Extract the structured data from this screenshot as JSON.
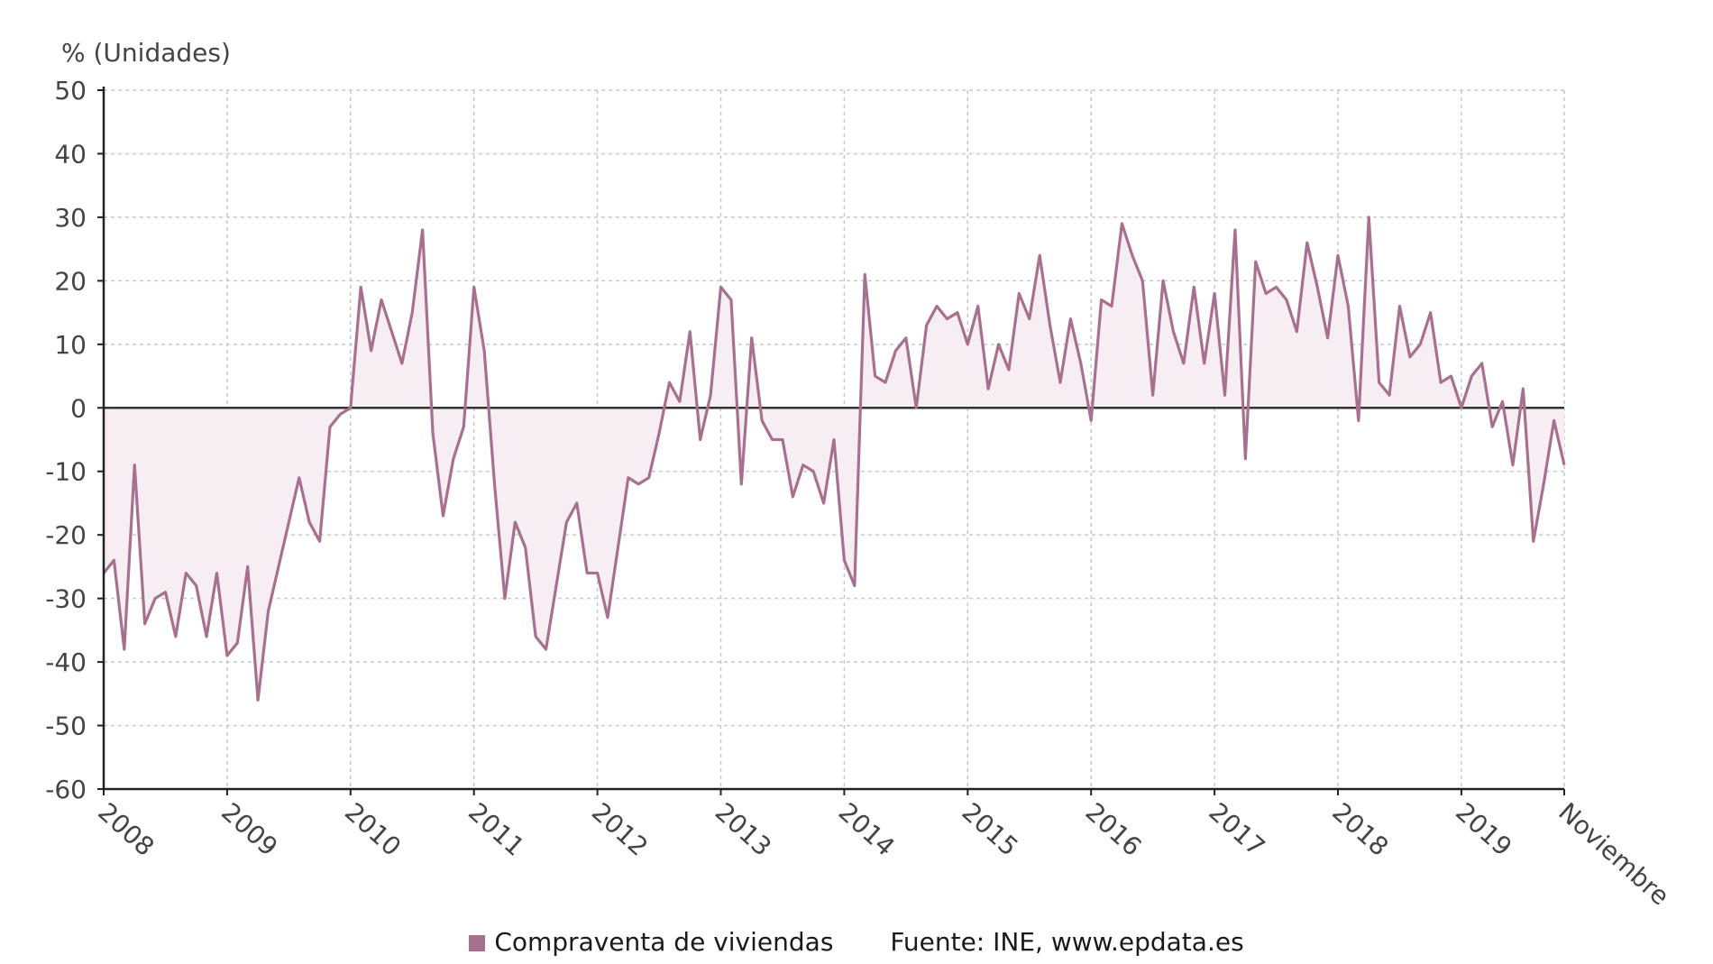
{
  "chart_data": {
    "type": "area",
    "title": "",
    "ylabel": "% (Unidades)",
    "ylim": [
      -60,
      50
    ],
    "yticks": [
      -60,
      -50,
      -40,
      -30,
      -20,
      -10,
      0,
      10,
      20,
      30,
      40,
      50
    ],
    "xlim": [
      "2008-01",
      "2019-11"
    ],
    "xticks": [
      {
        "label": "2008",
        "date": "2008-01"
      },
      {
        "label": "2009",
        "date": "2009-01"
      },
      {
        "label": "2010",
        "date": "2010-01"
      },
      {
        "label": "2011",
        "date": "2011-01"
      },
      {
        "label": "2012",
        "date": "2012-01"
      },
      {
        "label": "2013",
        "date": "2013-01"
      },
      {
        "label": "2014",
        "date": "2014-01"
      },
      {
        "label": "2015",
        "date": "2015-01"
      },
      {
        "label": "2016",
        "date": "2016-01"
      },
      {
        "label": "2017",
        "date": "2017-01"
      },
      {
        "label": "2018",
        "date": "2018-01"
      },
      {
        "label": "2019",
        "date": "2019-01"
      },
      {
        "label": "Noviembre",
        "date": "2019-11"
      }
    ],
    "grid": true,
    "series": [
      {
        "name": "Compraventa de viviendas",
        "color": "#a8708f",
        "start": "2008-01",
        "values": [
          -26,
          -24,
          -38,
          -9,
          -34,
          -30,
          -29,
          -36,
          -26,
          -28,
          -36,
          -26,
          -39,
          -37,
          -25,
          -46,
          -32,
          -25,
          -18,
          -11,
          -18,
          -21,
          -3,
          -1,
          0,
          19,
          9,
          17,
          12,
          7,
          15,
          28,
          -4,
          -17,
          -8,
          -3,
          19,
          9,
          -12,
          -30,
          -18,
          -22,
          -36,
          -38,
          -28,
          -18,
          -15,
          -26,
          -26,
          -33,
          -22,
          -11,
          -12,
          -11,
          -4,
          4,
          1,
          12,
          -5,
          2,
          19,
          17,
          -12,
          11,
          -2,
          -5,
          -5,
          -14,
          -9,
          -10,
          -15,
          -5,
          -24,
          -28,
          21,
          5,
          4,
          9,
          11,
          0,
          13,
          16,
          14,
          15,
          10,
          16,
          3,
          10,
          6,
          18,
          14,
          24,
          13,
          4,
          14,
          7,
          -2,
          17,
          16,
          29,
          24,
          20,
          2,
          20,
          12,
          7,
          19,
          7,
          18,
          2,
          28,
          -8,
          23,
          18,
          19,
          17,
          12,
          26,
          19,
          11,
          24,
          16,
          -2,
          30,
          4,
          2,
          16,
          8,
          10,
          15,
          4,
          5,
          0,
          5,
          7,
          -3,
          1,
          -9,
          3,
          -21,
          -12,
          -2,
          -9
        ]
      }
    ],
    "legend": {
      "position": "bottom-center"
    }
  },
  "legend_item": "Compraventa de viviendas",
  "source": "Fuente: INE, www.epdata.es",
  "colors": {
    "series": "#a8708f",
    "fill": "#f7eef3",
    "zero": "#333333",
    "grid": "#c8c8c8",
    "axis": "#222222"
  }
}
